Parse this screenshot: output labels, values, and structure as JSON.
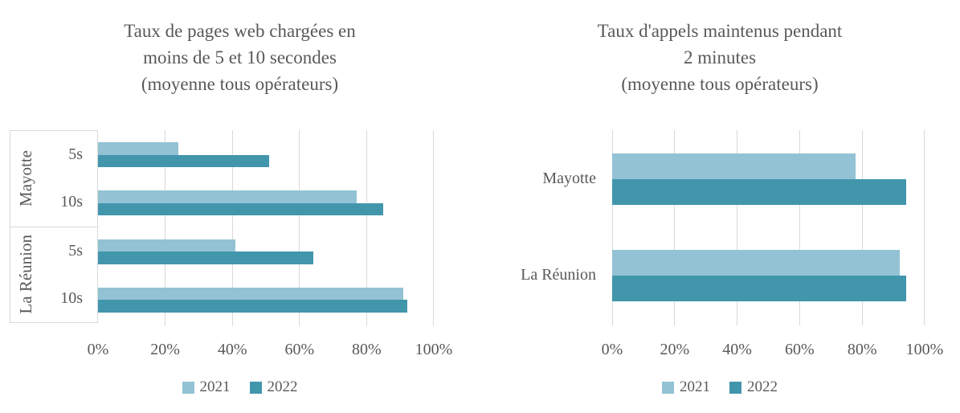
{
  "colors": {
    "series_2021": "#93C2D4",
    "series_2022": "#4296AC",
    "gridline": "#D9D9D9",
    "text": "#595959",
    "background": "#FFFFFF"
  },
  "chart_data": [
    {
      "type": "bar",
      "orientation": "horizontal",
      "title": "Taux de pages web chargées en moins de 5 et 10 secondes (moyenne tous opérateurs)",
      "title_lines": [
        "Taux de pages web chargées en",
        "moins de 5 et 10 secondes",
        "(moyenne tous opérateurs)"
      ],
      "categories": [
        "Mayotte 5s",
        "Mayotte 10s",
        "La Réunion 5s",
        "La Réunion 10s"
      ],
      "category_groups": [
        {
          "label": "Mayotte",
          "items": [
            "5s",
            "10s"
          ]
        },
        {
          "label": "La Réunion",
          "items": [
            "5s",
            "10s"
          ]
        }
      ],
      "series": [
        {
          "name": "2021",
          "color": "#93C2D4",
          "values": [
            24,
            77,
            41,
            91
          ]
        },
        {
          "name": "2022",
          "color": "#4296AC",
          "values": [
            51,
            85,
            64,
            92
          ]
        }
      ],
      "xlim": [
        0,
        100
      ],
      "x_tick_labels": [
        "0%",
        "20%",
        "40%",
        "60%",
        "80%",
        "100%"
      ],
      "grid": true,
      "zero_gridline": false,
      "legend_position": "bottom",
      "legend_labels": [
        "2021",
        "2022"
      ]
    },
    {
      "type": "bar",
      "orientation": "horizontal",
      "title": "Taux d'appels maintenus pendant 2 minutes (moyenne tous opérateurs)",
      "title_lines": [
        "Taux d'appels maintenus pendant",
        "2 minutes",
        "(moyenne tous opérateurs)"
      ],
      "categories": [
        "Mayotte",
        "La Réunion"
      ],
      "series": [
        {
          "name": "2021",
          "color": "#93C2D4",
          "values": [
            78,
            92
          ]
        },
        {
          "name": "2022",
          "color": "#4296AC",
          "values": [
            94,
            94
          ]
        }
      ],
      "xlim": [
        0,
        100
      ],
      "x_tick_labels": [
        "0%",
        "20%",
        "40%",
        "60%",
        "80%",
        "100%"
      ],
      "grid": true,
      "zero_gridline": true,
      "legend_position": "bottom",
      "legend_labels": [
        "2021",
        "2022"
      ]
    }
  ]
}
